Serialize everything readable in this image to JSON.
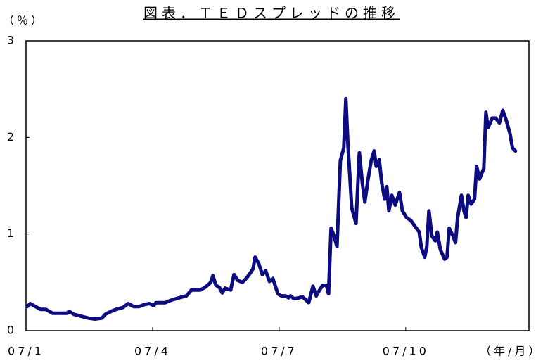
{
  "chart_data": {
    "type": "line",
    "title": "図表．ＴＥＤスプレッドの推移",
    "y_label": "（％）",
    "x_label": "（年/月）",
    "color": "#0c0c80",
    "xlim": [
      0,
      11.92
    ],
    "ylim": [
      0,
      3
    ],
    "xticks": [
      {
        "value": 0,
        "label": "07/1"
      },
      {
        "value": 3,
        "label": "07/4"
      },
      {
        "value": 6,
        "label": "07/7"
      },
      {
        "value": 9,
        "label": "07/10"
      }
    ],
    "yticks": [
      0,
      1,
      2,
      3
    ],
    "grid": false,
    "x": [
      0.03,
      0.1,
      0.22,
      0.35,
      0.47,
      0.63,
      0.97,
      1.02,
      1.13,
      1.3,
      1.47,
      1.63,
      1.8,
      1.88,
      2.02,
      2.13,
      2.3,
      2.42,
      2.55,
      2.68,
      2.8,
      2.92,
      3.03,
      3.08,
      3.3,
      3.47,
      3.63,
      3.8,
      3.92,
      4.13,
      4.25,
      4.38,
      4.43,
      4.5,
      4.58,
      4.65,
      4.72,
      4.85,
      4.93,
      5.02,
      5.13,
      5.22,
      5.32,
      5.38,
      5.43,
      5.52,
      5.6,
      5.68,
      5.77,
      5.85,
      5.97,
      6.05,
      6.15,
      6.22,
      6.27,
      6.35,
      6.47,
      6.55,
      6.63,
      6.7,
      6.8,
      6.88,
      6.93,
      7.03,
      7.12,
      7.17,
      7.23,
      7.3,
      7.37,
      7.45,
      7.53,
      7.58,
      7.63,
      7.72,
      7.82,
      7.9,
      7.97,
      8.03,
      8.1,
      8.18,
      8.25,
      8.3,
      8.37,
      8.43,
      8.5,
      8.55,
      8.6,
      8.67,
      8.75,
      8.85,
      8.92,
      9.02,
      9.12,
      9.22,
      9.32,
      9.37,
      9.45,
      9.5,
      9.55,
      9.62,
      9.7,
      9.75,
      9.82,
      9.92,
      9.98,
      10.03,
      10.12,
      10.18,
      10.23,
      10.32,
      10.38,
      10.43,
      10.48,
      10.55,
      10.63,
      10.68,
      10.75,
      10.85,
      10.9,
      10.95,
      11.05,
      11.13,
      11.22,
      11.3,
      11.38,
      11.47,
      11.53,
      11.6
    ],
    "values": [
      0.25,
      0.28,
      0.25,
      0.22,
      0.22,
      0.18,
      0.18,
      0.2,
      0.17,
      0.15,
      0.13,
      0.12,
      0.13,
      0.17,
      0.2,
      0.22,
      0.24,
      0.28,
      0.25,
      0.25,
      0.27,
      0.28,
      0.26,
      0.29,
      0.29,
      0.32,
      0.34,
      0.36,
      0.42,
      0.42,
      0.45,
      0.5,
      0.57,
      0.47,
      0.45,
      0.39,
      0.44,
      0.42,
      0.58,
      0.52,
      0.5,
      0.54,
      0.6,
      0.64,
      0.76,
      0.69,
      0.58,
      0.62,
      0.51,
      0.54,
      0.38,
      0.36,
      0.36,
      0.34,
      0.36,
      0.33,
      0.34,
      0.35,
      0.32,
      0.29,
      0.46,
      0.36,
      0.4,
      0.47,
      0.47,
      0.38,
      1.06,
      0.98,
      0.87,
      1.76,
      1.89,
      2.4,
      1.92,
      1.27,
      1.11,
      1.84,
      1.53,
      1.33,
      1.55,
      1.76,
      1.86,
      1.7,
      1.77,
      1.53,
      1.36,
      1.49,
      1.24,
      1.4,
      1.3,
      1.43,
      1.24,
      1.17,
      1.14,
      1.08,
      1.02,
      0.86,
      0.76,
      0.87,
      1.24,
      0.98,
      0.93,
      1.02,
      0.84,
      0.74,
      0.76,
      1.06,
      0.98,
      0.91,
      1.17,
      1.4,
      1.24,
      1.17,
      1.4,
      1.31,
      1.36,
      1.7,
      1.57,
      1.68,
      2.26,
      2.1,
      2.2,
      2.2,
      2.15,
      2.28,
      2.18,
      2.04,
      1.89,
      1.86
    ]
  }
}
